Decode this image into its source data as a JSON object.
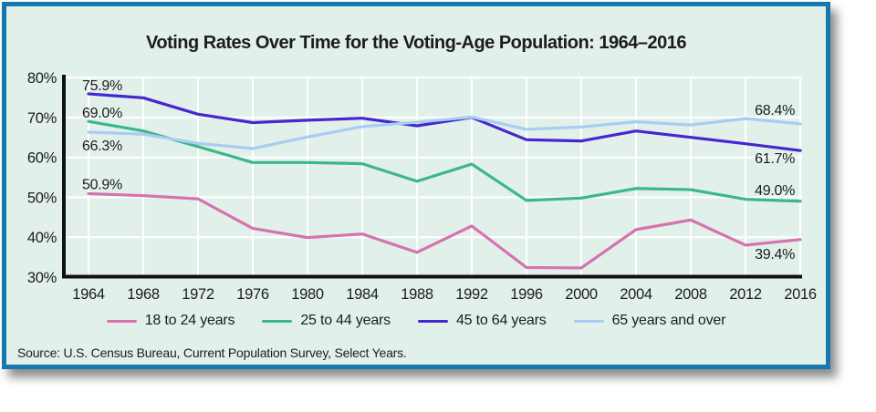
{
  "card": {
    "source": "Source: U.S. Census Bureau, Current Population Survey, Select Years."
  },
  "colors": {
    "card_background": "#e2f0ea",
    "card_border": "#1579af",
    "gridline": "#ffffff",
    "axis": "#111111",
    "text": "#1c1c1c"
  },
  "chart_data": {
    "type": "line",
    "title": "Voting Rates Over Time for the Voting-Age Population: 1964–2016",
    "xlabel": "",
    "ylabel": "",
    "x": [
      1964,
      1968,
      1972,
      1976,
      1980,
      1984,
      1988,
      1992,
      1996,
      2000,
      2004,
      2008,
      2012,
      2016
    ],
    "ylim": [
      30,
      80
    ],
    "yticks": [
      "80%",
      "70%",
      "60%",
      "50%",
      "40%",
      "30%"
    ],
    "ytick_values": [
      80,
      70,
      60,
      50,
      40,
      30
    ],
    "grid": true,
    "legend_position": "bottom",
    "series": [
      {
        "name": "18 to 24 years",
        "color": "#d673af",
        "values": [
          50.9,
          50.4,
          49.6,
          42.2,
          39.9,
          40.8,
          36.2,
          42.8,
          32.4,
          32.3,
          41.9,
          44.3,
          38.0,
          39.4
        ],
        "start_label": "50.9%",
        "end_label": "39.4%"
      },
      {
        "name": "25 to 44 years",
        "color": "#3db68c",
        "values": [
          69.0,
          66.6,
          62.7,
          58.7,
          58.7,
          58.4,
          54.0,
          58.3,
          49.2,
          49.8,
          52.2,
          51.9,
          49.5,
          49.0
        ],
        "start_label": "69.0%",
        "end_label": "49.0%"
      },
      {
        "name": "45 to 64 years",
        "color": "#4527d0",
        "values": [
          75.9,
          74.9,
          70.8,
          68.7,
          69.3,
          69.8,
          67.9,
          70.0,
          64.4,
          64.1,
          66.6,
          65.0,
          63.4,
          61.7
        ],
        "start_label": "75.9%",
        "end_label": "61.7%"
      },
      {
        "name": "65 years and over",
        "color": "#a8cdf2",
        "values": [
          66.3,
          65.8,
          63.5,
          62.2,
          65.1,
          67.7,
          68.8,
          70.1,
          67.0,
          67.6,
          68.9,
          68.1,
          69.7,
          68.4
        ],
        "start_label": "66.3%",
        "end_label": "68.4%"
      }
    ]
  }
}
